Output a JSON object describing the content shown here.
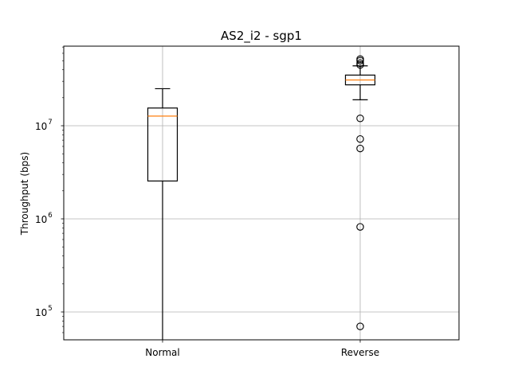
{
  "chart_data": {
    "type": "boxplot",
    "title": "AS2_i2 - sgp1",
    "xlabel": "",
    "ylabel": "Throughput (bps)",
    "y_scale": "log",
    "ylim": [
      50000,
      70000000
    ],
    "grid": true,
    "categories": [
      "Normal",
      "Reverse"
    ],
    "y_major_ticks": [
      {
        "value": 100000,
        "base": "10",
        "exp": "5"
      },
      {
        "value": 1000000,
        "base": "10",
        "exp": "6"
      },
      {
        "value": 10000000,
        "base": "10",
        "exp": "7"
      }
    ],
    "boxes": [
      {
        "category": "Normal",
        "whisker_low": 50000,
        "q1": 2550000,
        "median": 12700000,
        "q3": 15500000,
        "whisker_high": 25000000,
        "fliers": []
      },
      {
        "category": "Reverse",
        "whisker_low": 19000000,
        "q1": 27500000,
        "median": 31000000,
        "q3": 35000000,
        "whisker_high": 44000000,
        "fliers": [
          52000000,
          50000000,
          47000000,
          45000000,
          12000000,
          7200000,
          5700000,
          820000,
          70000
        ]
      }
    ],
    "colors": {
      "box": "#000000",
      "median": "#ff7f0e",
      "grid": "#b0b0b0"
    }
  }
}
